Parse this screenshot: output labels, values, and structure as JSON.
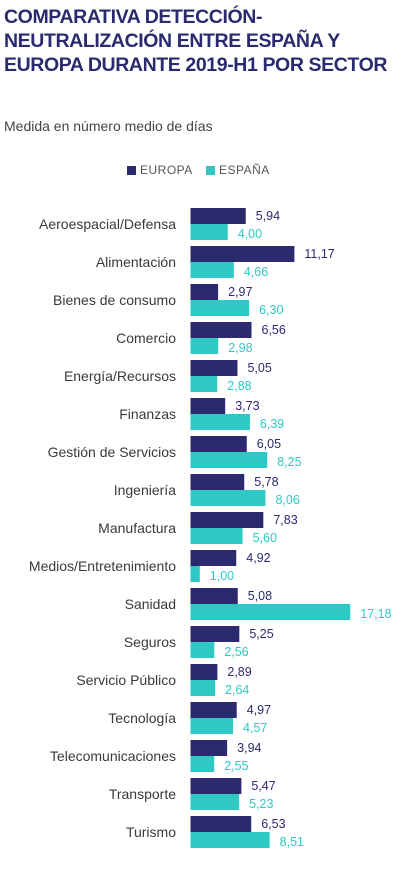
{
  "title": "COMPARATIVA DETECCIÓN-NEUTRALIZACIÓN ENTRE ESPAÑA Y EUROPA DURANTE 2019-H1 POR SECTOR",
  "subtitle": "Medida en número medio de días",
  "colors": {
    "europa": "#2b2a6e",
    "espana": "#2ec9c4",
    "europa_label": "#2b2a6e",
    "espana_label": "#2ec9c4"
  },
  "legend": [
    {
      "label": "EUROPA",
      "color": "#2b2a6e"
    },
    {
      "label": "ESPAÑA",
      "color": "#2ec9c4"
    }
  ],
  "chart_data": {
    "type": "bar",
    "orientation": "horizontal",
    "title": "COMPARATIVA DETECCIÓN-NEUTRALIZACIÓN ENTRE ESPAÑA Y EUROPA DURANTE 2019-H1 POR SECTOR",
    "subtitle": "Medida en número medio de días",
    "legend_position": "top-center",
    "grid": false,
    "xlim": [
      0,
      17.18
    ],
    "categories": [
      "Aeroespacial/Defensa",
      "Alimentación",
      "Bienes de consumo",
      "Comercio",
      "Energía/Recursos",
      "Finanzas",
      "Gestión de Servicios",
      "Ingeniería",
      "Manufactura",
      "Medios/Entretenimiento",
      "Sanidad",
      "Seguros",
      "Servicio Público",
      "Tecnología",
      "Telecomunicaciones",
      "Transporte",
      "Turismo"
    ],
    "series": [
      {
        "name": "EUROPA",
        "values": [
          5.94,
          11.17,
          2.97,
          6.56,
          5.05,
          3.73,
          6.05,
          5.78,
          7.83,
          4.92,
          5.08,
          5.25,
          2.89,
          4.97,
          3.94,
          5.47,
          6.53
        ],
        "labels": [
          "5,94",
          "11,17",
          "2,97",
          "6,56",
          "5,05",
          "3,73",
          "6,05",
          "5,78",
          "7,83",
          "4,92",
          "5,08",
          "5,25",
          "2,89",
          "4,97",
          "3,94",
          "5,47",
          "6,53"
        ]
      },
      {
        "name": "ESPAÑA",
        "values": [
          4.0,
          4.66,
          6.3,
          2.98,
          2.88,
          6.39,
          8.25,
          8.06,
          5.6,
          1.0,
          17.18,
          2.56,
          2.64,
          4.57,
          2.55,
          5.23,
          8.51
        ],
        "labels": [
          "4,00",
          "4,66",
          "6,30",
          "2,98",
          "2,88",
          "6,39",
          "8,25",
          "8,06",
          "5,60",
          "1,00",
          "17,18",
          "2,56",
          "2,64",
          "4,57",
          "2,55",
          "5,23",
          "8,51"
        ]
      }
    ]
  }
}
